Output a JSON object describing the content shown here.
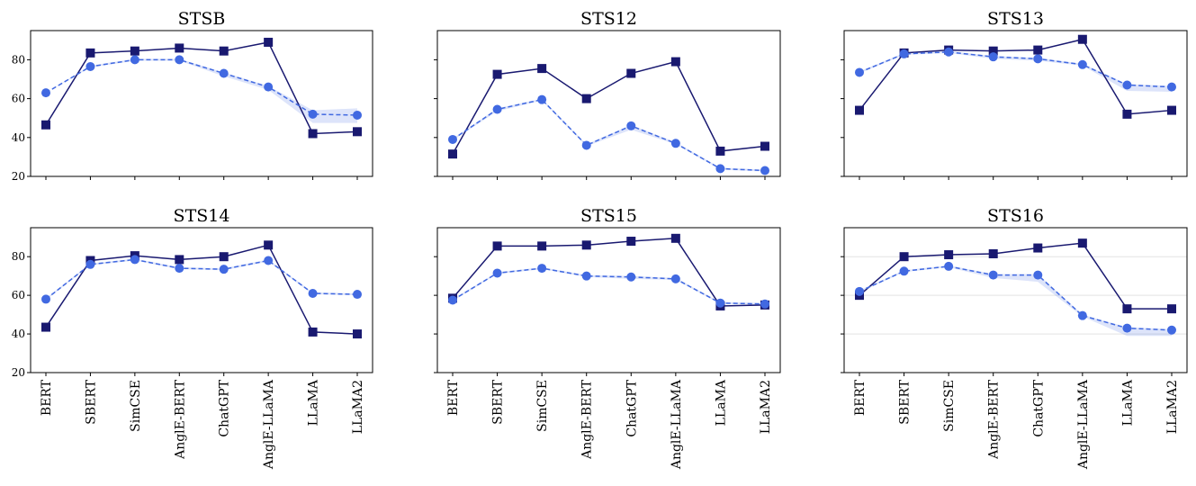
{
  "chart_data": [
    {
      "type": "line",
      "title": "STSB",
      "categories": [
        "BERT",
        "SBERT",
        "SimCSE",
        "AnglE-BERT",
        "ChatGPT",
        "AnglE-LLaMA",
        "LLaMA",
        "LLaMA2"
      ],
      "ylim": [
        20,
        95
      ],
      "yticks": [
        20,
        40,
        60,
        80
      ],
      "show_x_labels": false,
      "series": [
        {
          "values": [
            46.5,
            83.5,
            84.5,
            86,
            84.5,
            89,
            42,
            43
          ],
          "color": "#191970",
          "marker": "square",
          "dash": "solid"
        },
        {
          "values": [
            63,
            76.5,
            80,
            80,
            73,
            66,
            52,
            51.5
          ],
          "band": [
            [
              63,
              63
            ],
            [
              76,
              77
            ],
            [
              79.5,
              80.5
            ],
            [
              79.5,
              80.5
            ],
            [
              71.5,
              73.5
            ],
            [
              64.5,
              66.5
            ],
            [
              47.5,
              54
            ],
            [
              47.5,
              55
            ]
          ],
          "color": "#4169E1",
          "marker": "circle",
          "dash": "dashed"
        }
      ]
    },
    {
      "type": "line",
      "title": "STS12",
      "categories": [
        "BERT",
        "SBERT",
        "SimCSE",
        "AnglE-BERT",
        "ChatGPT",
        "AnglE-LLaMA",
        "LLaMA",
        "LLaMA2"
      ],
      "ylim": [
        20,
        95
      ],
      "yticks": [
        20,
        40,
        60,
        80
      ],
      "show_x_labels": false,
      "series": [
        {
          "values": [
            31.5,
            72.5,
            75.5,
            60,
            73,
            79,
            33,
            35.5
          ],
          "color": "#191970",
          "marker": "square",
          "dash": "solid"
        },
        {
          "values": [
            39,
            54.5,
            59.5,
            36,
            46,
            37,
            24,
            23
          ],
          "band": [
            [
              38.5,
              39.5
            ],
            [
              53.5,
              55
            ],
            [
              59,
              60
            ],
            [
              35.5,
              36.5
            ],
            [
              44,
              46.5
            ],
            [
              36.5,
              37.5
            ],
            [
              23.5,
              24.5
            ],
            [
              22.5,
              23.5
            ]
          ],
          "color": "#4169E1",
          "marker": "circle",
          "dash": "dashed"
        }
      ]
    },
    {
      "type": "line",
      "title": "STS13",
      "categories": [
        "BERT",
        "SBERT",
        "SimCSE",
        "AnglE-BERT",
        "ChatGPT",
        "AnglE-LLaMA",
        "LLaMA",
        "LLaMA2"
      ],
      "ylim": [
        20,
        95
      ],
      "yticks": [
        20,
        40,
        60,
        80
      ],
      "show_x_labels": false,
      "series": [
        {
          "values": [
            54,
            83.5,
            85,
            84.5,
            85,
            90.5,
            52,
            54
          ],
          "color": "#191970",
          "marker": "square",
          "dash": "solid"
        },
        {
          "values": [
            73.5,
            83,
            84,
            81.5,
            80.5,
            77.5,
            67,
            66
          ],
          "band": [
            [
              73,
              74
            ],
            [
              82.5,
              83.5
            ],
            [
              83.5,
              84.5
            ],
            [
              80.5,
              82
            ],
            [
              79.5,
              81
            ],
            [
              77,
              78
            ],
            [
              64,
              67.5
            ],
            [
              63.5,
              66.5
            ]
          ],
          "color": "#4169E1",
          "marker": "circle",
          "dash": "dashed"
        }
      ]
    },
    {
      "type": "line",
      "title": "STS14",
      "categories": [
        "BERT",
        "SBERT",
        "SimCSE",
        "AnglE-BERT",
        "ChatGPT",
        "AnglE-LLaMA",
        "LLaMA",
        "LLaMA2"
      ],
      "ylim": [
        20,
        95
      ],
      "yticks": [
        20,
        40,
        60,
        80
      ],
      "show_x_labels": true,
      "series": [
        {
          "values": [
            43.5,
            78,
            80.5,
            78.5,
            80,
            86,
            41,
            40
          ],
          "color": "#191970",
          "marker": "square",
          "dash": "solid"
        },
        {
          "values": [
            58,
            76,
            78.5,
            74,
            73.5,
            78,
            61,
            60.5
          ],
          "band": [
            [
              57.5,
              58.5
            ],
            [
              75.5,
              76.5
            ],
            [
              78,
              79
            ],
            [
              73.5,
              74.5
            ],
            [
              73,
              74
            ],
            [
              77.5,
              78.5
            ],
            [
              60.5,
              61.5
            ],
            [
              60,
              61
            ]
          ],
          "color": "#4169E1",
          "marker": "circle",
          "dash": "dashed"
        }
      ]
    },
    {
      "type": "line",
      "title": "STS15",
      "categories": [
        "BERT",
        "SBERT",
        "SimCSE",
        "AnglE-BERT",
        "ChatGPT",
        "AnglE-LLaMA",
        "LLaMA",
        "LLaMA2"
      ],
      "ylim": [
        20,
        95
      ],
      "yticks": [
        20,
        40,
        60,
        80
      ],
      "show_x_labels": true,
      "series": [
        {
          "values": [
            58.5,
            85.5,
            85.5,
            86,
            88,
            89.5,
            54.5,
            55
          ],
          "color": "#191970",
          "marker": "square",
          "dash": "solid"
        },
        {
          "values": [
            57.5,
            71.5,
            74,
            70,
            69.5,
            68.5,
            56,
            55.5
          ],
          "band": [
            [
              57,
              58
            ],
            [
              71,
              72
            ],
            [
              73.5,
              74.5
            ],
            [
              69.5,
              70.5
            ],
            [
              68.5,
              70
            ],
            [
              68,
              69
            ],
            [
              55.5,
              56.5
            ],
            [
              55,
              56
            ]
          ],
          "color": "#4169E1",
          "marker": "circle",
          "dash": "dashed"
        }
      ]
    },
    {
      "type": "line",
      "title": "STS16",
      "categories": [
        "BERT",
        "SBERT",
        "SimCSE",
        "AnglE-BERT",
        "ChatGPT",
        "AnglE-LLaMA",
        "LLaMA",
        "LLaMA2"
      ],
      "ylim": [
        20,
        95
      ],
      "yticks": [
        20,
        40,
        60,
        80
      ],
      "show_x_labels": true,
      "grid": true,
      "series": [
        {
          "values": [
            60,
            80,
            81,
            81.5,
            84.5,
            87,
            53,
            53
          ],
          "color": "#191970",
          "marker": "square",
          "dash": "solid"
        },
        {
          "values": [
            62,
            72.5,
            75,
            70.5,
            70.5,
            49.5,
            43,
            42
          ],
          "band": [
            [
              61.5,
              62.5
            ],
            [
              72,
              73
            ],
            [
              74.5,
              75.5
            ],
            [
              69,
              71
            ],
            [
              67,
              71
            ],
            [
              49,
              50
            ],
            [
              39,
              43.5
            ],
            [
              39,
              42.5
            ]
          ],
          "color": "#4169E1",
          "marker": "circle",
          "dash": "dashed"
        }
      ]
    }
  ]
}
